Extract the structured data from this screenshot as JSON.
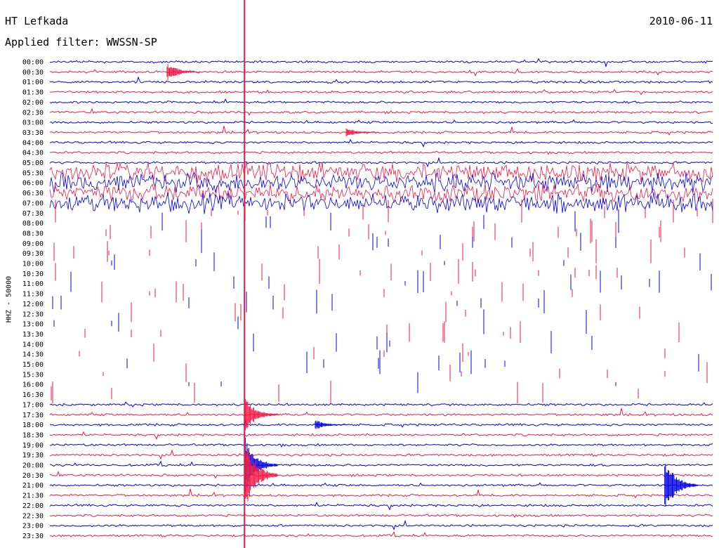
{
  "header": {
    "station": "HT Lefkada",
    "filter_text": "Applied filter: WWSSN-SP",
    "date": "2010-06-11"
  },
  "side_label": "HHZ - 50000",
  "colors": {
    "trace_a": "#0000e0",
    "trace_b": "#ee1844",
    "marker": "#ee1844",
    "text": "#000000"
  },
  "chart_data": {
    "type": "line",
    "title": "HT Lefkada",
    "subtitle": "Applied filter: WWSSN-SP",
    "ylabel": "HHZ - 50000",
    "row_labels": [
      "00:00",
      "00:30",
      "01:00",
      "01:30",
      "02:00",
      "02:30",
      "03:00",
      "03:30",
      "04:00",
      "04:30",
      "05:00",
      "05:30",
      "06:00",
      "06:30",
      "07:00",
      "07:30",
      "08:00",
      "08:30",
      "09:00",
      "09:30",
      "10:00",
      "10:30",
      "11:00",
      "11:30",
      "12:00",
      "12:30",
      "13:00",
      "13:30",
      "14:00",
      "14:30",
      "15:00",
      "15:30",
      "16:00",
      "16:30",
      "17:00",
      "17:30",
      "18:00",
      "18:30",
      "19:00",
      "19:30",
      "20:00",
      "20:30",
      "21:00",
      "21:30",
      "22:00",
      "22:30",
      "23:00",
      "23:30"
    ],
    "row_minutes": 30,
    "series": [
      {
        "color": "#0000e0",
        "rows": "even"
      },
      {
        "color": "#ee1844",
        "rows": "odd"
      }
    ],
    "data_gap": {
      "start": "07:30",
      "end": "17:00"
    },
    "events": [
      {
        "row": "00:30",
        "minute": 5.3,
        "amplitude": 0.95
      },
      {
        "row": "17:30",
        "minute": 8.8,
        "amplitude": 2.0
      },
      {
        "row": "20:00",
        "minute": 8.8,
        "amplitude": 3.0
      },
      {
        "row": "20:30",
        "minute": 8.8,
        "amplitude": 4.0
      },
      {
        "row": "21:00",
        "minute": 27.8,
        "amplitude": 3.0
      },
      {
        "row": "03:30",
        "minute": 13.4,
        "amplitude": 0.5
      },
      {
        "row": "18:00",
        "minute": 12.0,
        "amplitude": 0.5
      }
    ],
    "vertical_marker_minute": 8.8,
    "grid": false
  }
}
